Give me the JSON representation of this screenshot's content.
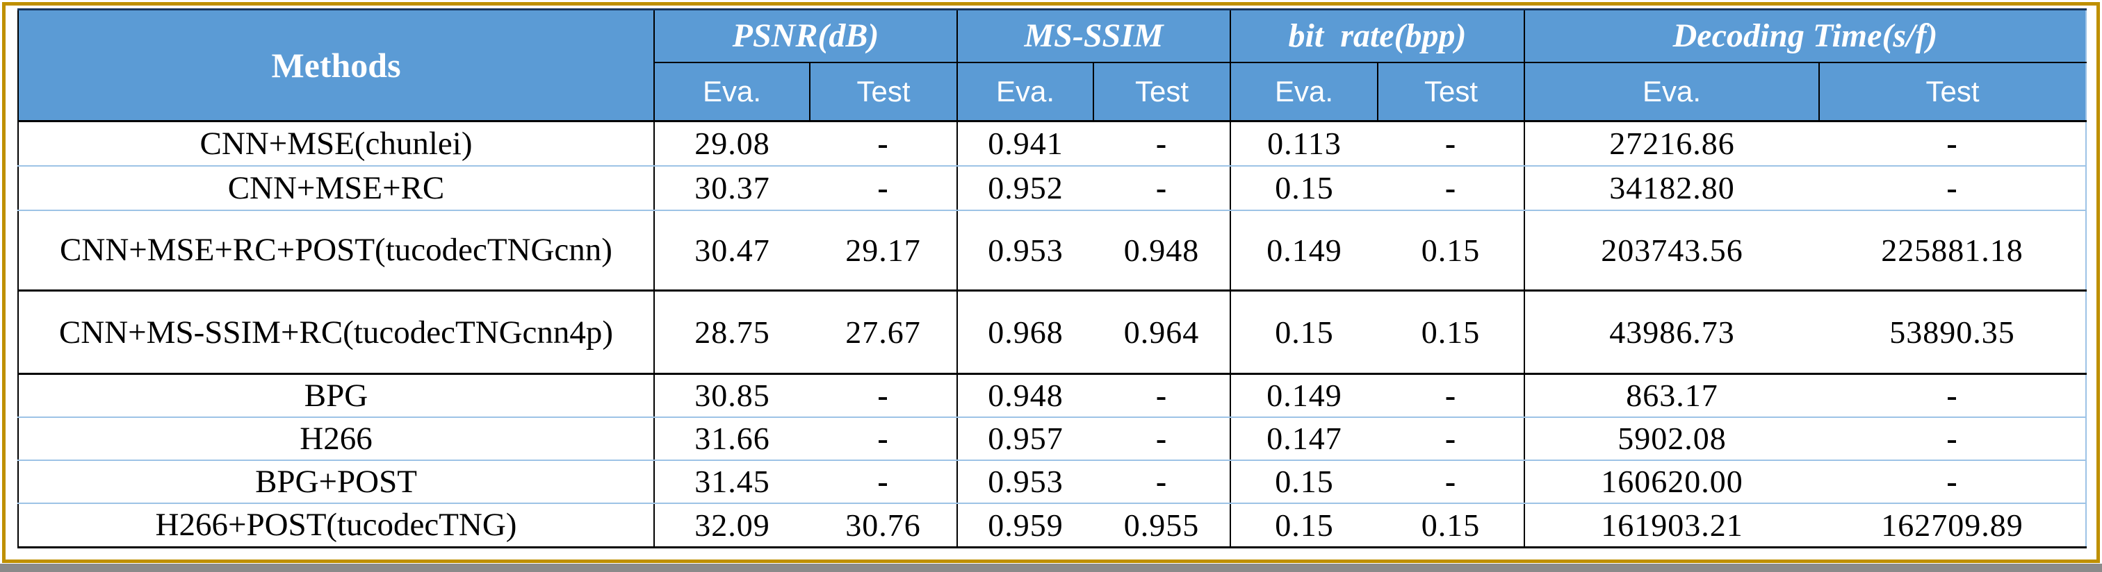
{
  "chart_data": {
    "type": "table",
    "header": {
      "methods_label": "Methods",
      "groups": [
        {
          "label": "PSNR(dB)",
          "sub": [
            "Eva.",
            "Test"
          ]
        },
        {
          "label": "MS-SSIM",
          "sub": [
            "Eva.",
            "Test"
          ]
        },
        {
          "label": "bit  rate(bpp)",
          "sub": [
            "Eva.",
            "Test"
          ]
        },
        {
          "label": "Decoding Time(s/f)",
          "sub": [
            "Eva.",
            "Test"
          ]
        }
      ],
      "sub_labels": [
        "Eva.",
        "Test",
        "Eva.",
        "Test",
        "Eva.",
        "Test",
        "Eva.",
        "Test"
      ]
    },
    "rows": [
      {
        "method": "CNN+MSE(chunlei)",
        "values": [
          "29.08",
          "-",
          "0.941",
          "-",
          "0.113",
          "-",
          "27216.86",
          "-"
        ]
      },
      {
        "method": "CNN+MSE+RC",
        "values": [
          "30.37",
          "-",
          "0.952",
          "-",
          "0.15",
          "-",
          "34182.80",
          "-"
        ]
      },
      {
        "method": "CNN+MSE+RC+POST(tucodecTNGcnn)",
        "values": [
          "30.47",
          "29.17",
          "0.953",
          "0.948",
          "0.149",
          "0.15",
          "203743.56",
          "225881.18"
        ]
      },
      {
        "method": "CNN+MS-SSIM+RC(tucodecTNGcnn4p)",
        "values": [
          "28.75",
          "27.67",
          "0.968",
          "0.964",
          "0.15",
          "0.15",
          "43986.73",
          "53890.35"
        ]
      },
      {
        "method": "BPG",
        "values": [
          "30.85",
          "-",
          "0.948",
          "-",
          "0.149",
          "-",
          "863.17",
          "-"
        ]
      },
      {
        "method": "H266",
        "values": [
          "31.66",
          "-",
          "0.957",
          "-",
          "0.147",
          "-",
          "5902.08",
          "-"
        ]
      },
      {
        "method": "BPG+POST",
        "values": [
          "31.45",
          "-",
          "0.953",
          "-",
          "0.15",
          "-",
          "160620.00",
          "-"
        ]
      },
      {
        "method": "H266+POST(tucodecTNG)",
        "values": [
          "32.09",
          "30.76",
          "0.959",
          "0.955",
          "0.15",
          "0.15",
          "161903.21",
          "162709.89"
        ]
      }
    ]
  },
  "colors": {
    "header_background": "#5b9bd5",
    "header_text": "#ffffff",
    "body_text": "#000000",
    "row_separator_blue": "#9dc3e6",
    "group_border_black": "#000000",
    "table_top_border": "#17365d",
    "outer_frame_gold": "#bf9000",
    "bottom_strip_grey": "#8a8a8a",
    "page_background": "#ffffff"
  }
}
